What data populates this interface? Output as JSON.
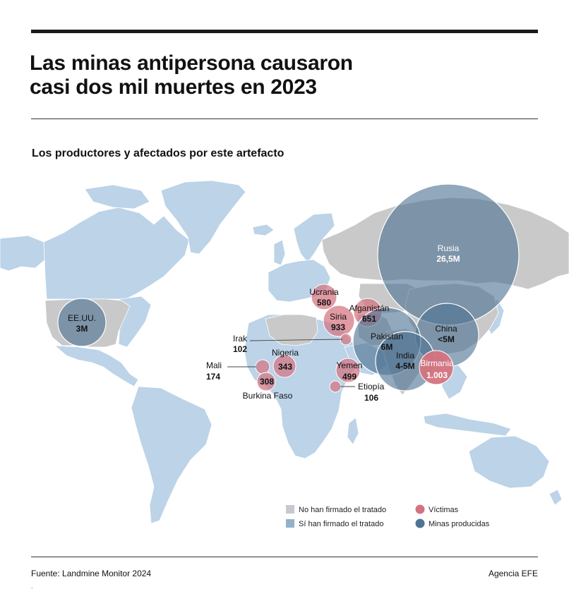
{
  "header": {
    "title_line1": "Las minas antipersona causaron",
    "title_line2": "casi dos mil muertes en 2023",
    "subtitle": "Los productores y afectados por este artefacto"
  },
  "colors": {
    "not_signed": "#c9c9c9",
    "signed": "#bcd3e8",
    "victims": "#d4737f",
    "mines": "#4f7393",
    "legend_not_signed": "#c6cacf",
    "legend_signed": "#93b1c8"
  },
  "producers": [
    {
      "id": "usa",
      "name": "EE.UU.",
      "value": "3M"
    },
    {
      "id": "russia",
      "name": "Rusia",
      "value": "26,5M"
    },
    {
      "id": "china",
      "name": "China",
      "value": "<5M"
    },
    {
      "id": "pakistan",
      "name": "Pakistán",
      "value": "6M"
    },
    {
      "id": "india",
      "name": "India",
      "value": "4-5M"
    }
  ],
  "victims": [
    {
      "id": "ukraine",
      "name": "Ucrania",
      "value": "580"
    },
    {
      "id": "afghanistan",
      "name": "Afganistán",
      "value": "651"
    },
    {
      "id": "syria",
      "name": "Siria",
      "value": "933"
    },
    {
      "id": "iraq",
      "name": "Irak",
      "value": "102"
    },
    {
      "id": "nigeria",
      "name": "Nigeria",
      "value": "343"
    },
    {
      "id": "mali",
      "name": "Mali",
      "value": "174"
    },
    {
      "id": "burkina",
      "name": "Burkina Faso",
      "value": "308"
    },
    {
      "id": "yemen",
      "name": "Yemen",
      "value": "499"
    },
    {
      "id": "ethiopia",
      "name": "Etiopía",
      "value": "106"
    },
    {
      "id": "myanmar",
      "name": "Birmania",
      "value": "1.003"
    }
  ],
  "legend": {
    "not_signed": "No han firmado el tratado",
    "signed": "Sí han firmado el tratado",
    "victims": "Víctimas",
    "mines": "Minas producidas"
  },
  "footer": {
    "source": "Fuente: Landmine Monitor 2024",
    "agency": "Agencia EFE",
    "mark": "."
  }
}
